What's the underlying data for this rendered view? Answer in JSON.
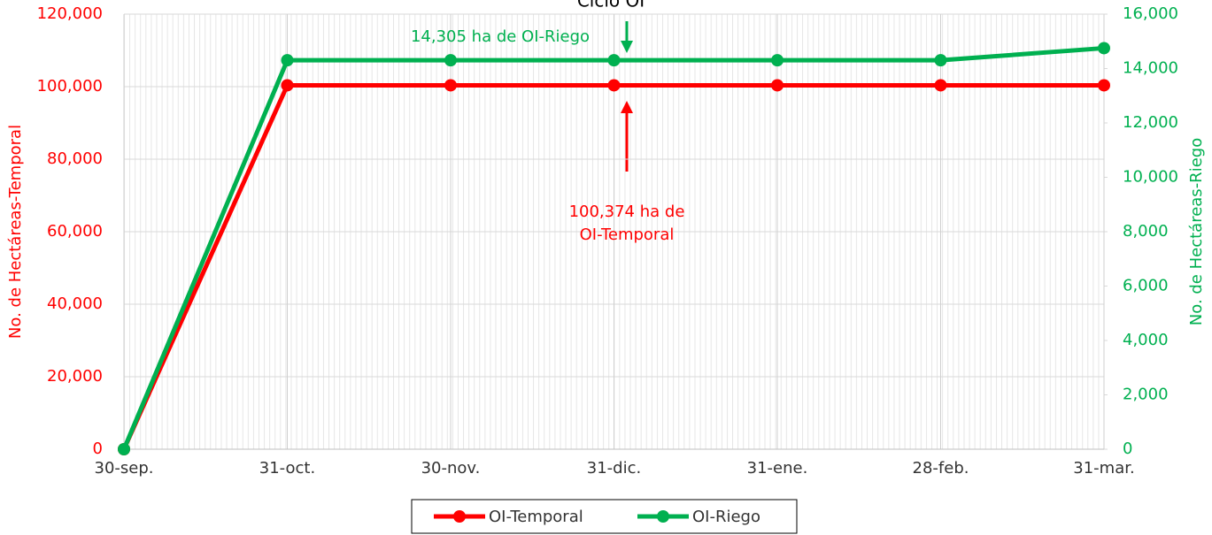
{
  "chart_data": {
    "type": "line",
    "title": "Ciclo OI",
    "ylabel": "No. de Hectáreas-Temporal",
    "y2label": "No. de Hectáreas-Riego",
    "categories": [
      "30-sep.",
      "31-oct.",
      "30-nov.",
      "31-dic.",
      "31-ene.",
      "28-feb.",
      "31-mar."
    ],
    "series": [
      {
        "name": "OI-Temporal",
        "color": "#ff0000",
        "values": [
          0,
          100374,
          100374,
          100374,
          100374,
          100374,
          100374
        ]
      },
      {
        "name": "OI-Riego",
        "color": "#00b050",
        "axis": "y2",
        "values": [
          0,
          14305,
          14305,
          14305,
          14305,
          14305,
          14750
        ]
      }
    ],
    "ylim": [
      0,
      120000
    ],
    "yticks": [
      {
        "value": 0,
        "label": "0"
      },
      {
        "value": 20000,
        "label": "20,000"
      },
      {
        "value": 40000,
        "label": "40,000"
      },
      {
        "value": 60000,
        "label": "60,000"
      },
      {
        "value": 80000,
        "label": "80,000"
      },
      {
        "value": 100000,
        "label": "100,000"
      },
      {
        "value": 120000,
        "label": "120,000"
      }
    ],
    "y2lim": [
      0,
      16000
    ],
    "y2ticks": [
      {
        "value": 0,
        "label": "0"
      },
      {
        "value": 2000,
        "label": "2,000"
      },
      {
        "value": 4000,
        "label": "4,000"
      },
      {
        "value": 6000,
        "label": "6,000"
      },
      {
        "value": 8000,
        "label": "8,000"
      },
      {
        "value": 10000,
        "label": "10,000"
      },
      {
        "value": 12000,
        "label": "12,000"
      },
      {
        "value": 14000,
        "label": "14,000"
      },
      {
        "value": 16000,
        "label": "16,000"
      }
    ],
    "grid": true,
    "legend": "bottom",
    "annotations": [
      {
        "lines": [
          "14,305 ha de OI-Riego"
        ],
        "color": "#00b050"
      },
      {
        "lines": [
          "100,374 ha de",
          "OI-Temporal"
        ],
        "color": "#ff0000"
      }
    ]
  }
}
